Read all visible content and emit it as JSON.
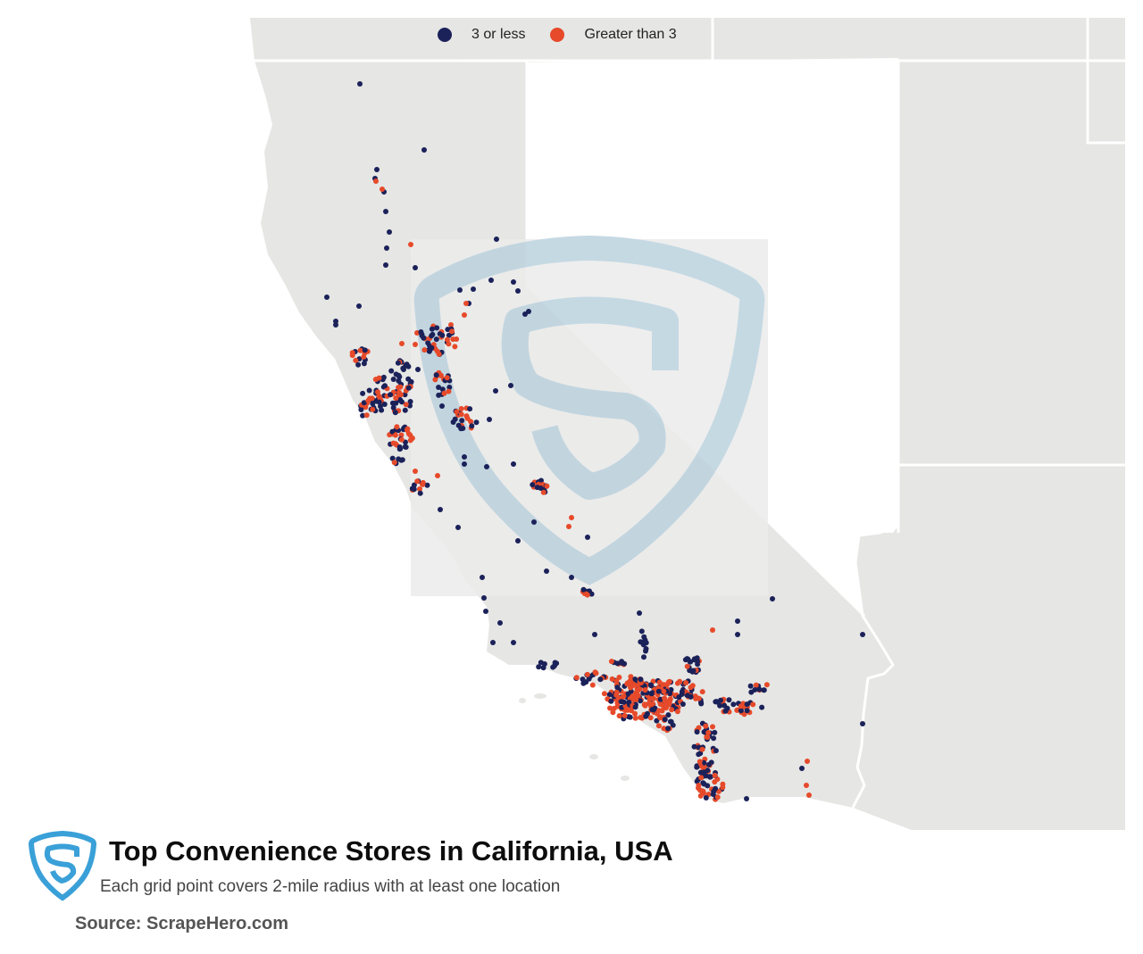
{
  "legend": {
    "items": [
      {
        "label": "3 or less",
        "color": "#1b2159"
      },
      {
        "label": "Greater than 3",
        "color": "#e64a2a"
      }
    ]
  },
  "title": "Top Convenience Stores in California, USA",
  "subtitle": "Each grid point covers 2-mile radius with at least one location",
  "source": "Source: ScrapeHero.com",
  "colors": {
    "land": "#e6e6e4",
    "border": "#ffffff",
    "watermark": "#b9d0dd",
    "logo": "#3aa0d8"
  },
  "icons": {
    "logo": "scrapehero-shield-logo",
    "watermark": "scrapehero-shield-watermark"
  }
}
